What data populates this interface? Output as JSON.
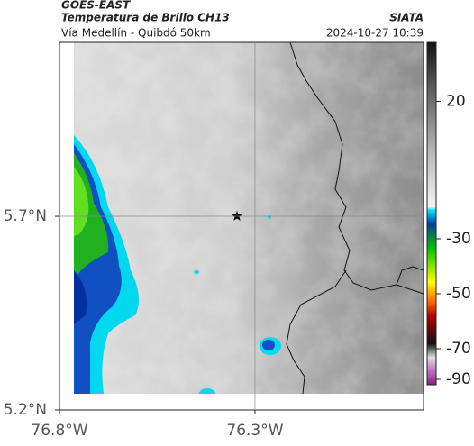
{
  "header": {
    "title": "GOES-EAST",
    "subtitle": "Temperatura de Brillo CH13",
    "location": "Vía Medellín - Quibdó 50km",
    "source": "SIATA",
    "datetime": "2024-10-27 10:39"
  },
  "map": {
    "xlim": [
      -76.8,
      -75.869
    ],
    "ylim": [
      5.2,
      6.149
    ],
    "xticks": [
      {
        "value": -76.8,
        "label": "76.8°W"
      },
      {
        "value": -76.3,
        "label": "76.3°W"
      }
    ],
    "yticks": [
      {
        "value": 5.2,
        "label": "5.2°N"
      },
      {
        "value": 5.7,
        "label": "5.7°N"
      }
    ]
  },
  "colorbar": {
    "ticks": [
      20,
      -30,
      -50,
      -70,
      -90
    ]
  }
}
